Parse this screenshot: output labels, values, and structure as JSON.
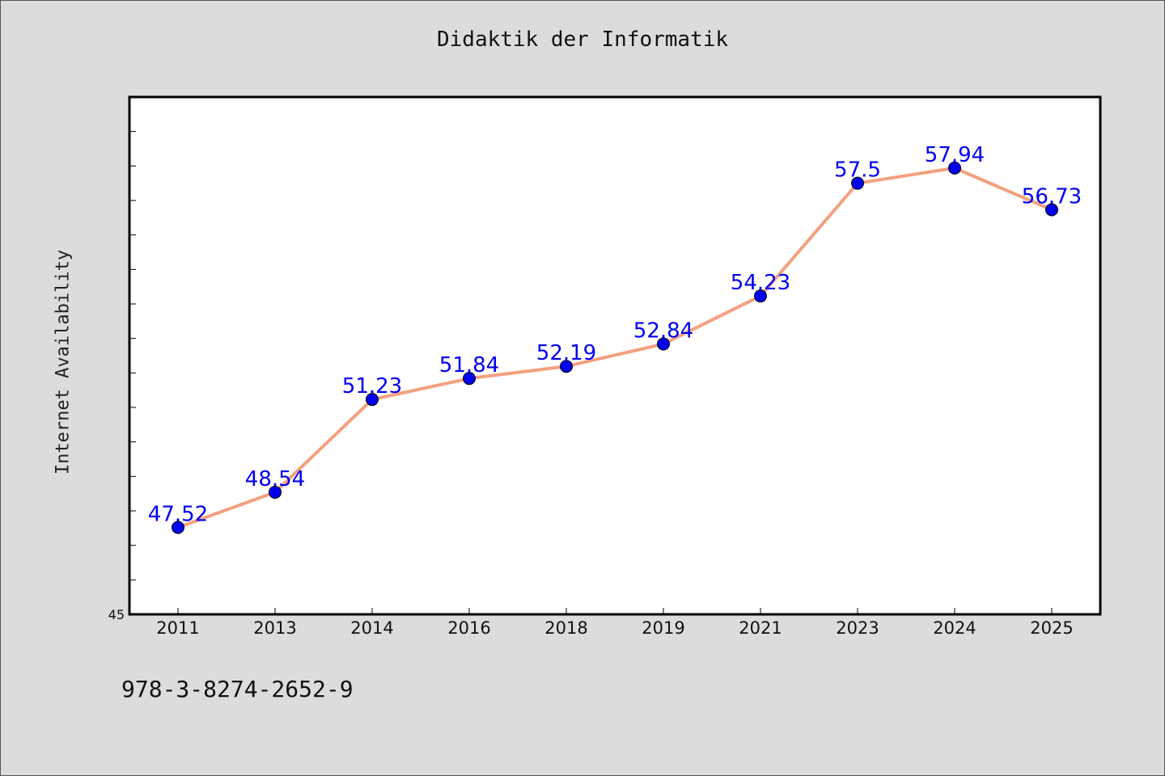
{
  "chart_data": {
    "type": "line",
    "title": "Didaktik der Informatik",
    "xlabel": "",
    "ylabel": "Internet Availability",
    "categories": [
      "2011",
      "2013",
      "2014",
      "2016",
      "2018",
      "2019",
      "2021",
      "2023",
      "2024",
      "2025"
    ],
    "series": [
      {
        "values": [
          47.52,
          48.54,
          51.23,
          51.84,
          52.19,
          52.84,
          54.23,
          57.5,
          57.94,
          56.73
        ],
        "data_labels": [
          "47.52",
          "48.54",
          "51.23",
          "51.84",
          "52.19",
          "52.84",
          "54.23",
          "57.5",
          "57.94",
          "56.73"
        ],
        "line_color": "#f4a07f",
        "marker_color": "#0000ee"
      }
    ],
    "ylim": [
      45,
      60
    ],
    "y_tick_label": "45",
    "grid": false,
    "legend": "none"
  },
  "footer_text": "978-3-8274-2652-9"
}
